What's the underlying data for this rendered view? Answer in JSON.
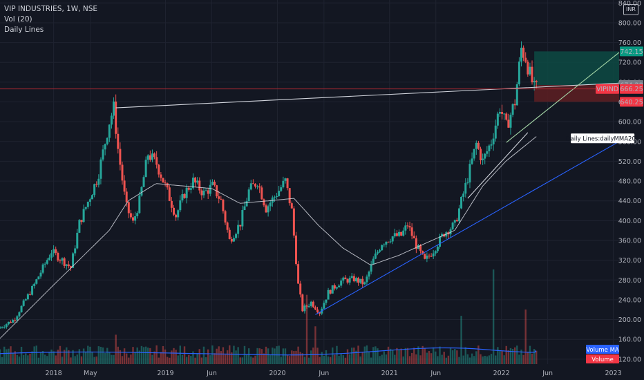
{
  "header": {
    "symbol_line": "VIP INDUSTRIES, 1W, NSE",
    "indicator_1": "Vol (20)",
    "indicator_2": "Daily Lines"
  },
  "currency_badge": "INR",
  "colors": {
    "background": "#131722",
    "up": "#26a69a",
    "down": "#ef5350",
    "grid": "#1f2330",
    "sma": "#d1d4dc",
    "trend_blue": "#2962ff",
    "volume_ma": "#2962ff",
    "target_zone": "#0d4a43",
    "stop_zone": "#5a1e22"
  },
  "chart_data": {
    "type": "candlestick",
    "title": "VIP INDUSTRIES, 1W, NSE",
    "y_axis": {
      "ticks": [
        120,
        160,
        200,
        240,
        280,
        320,
        360,
        400,
        440,
        480,
        520,
        560,
        600,
        640,
        680,
        720,
        760,
        800,
        840
      ],
      "tick_labels": [
        "120.00",
        "160.00",
        "200.00",
        "240.00",
        "280.00",
        "320.00",
        "360.00",
        "400.00",
        "440.00",
        "480.00",
        "520.00",
        "560.00",
        "600.00",
        "640.00",
        "680.00",
        "720.00",
        "760.00",
        "800.00",
        "840.00"
      ],
      "range": [
        110,
        846
      ]
    },
    "x_axis": {
      "labels": [
        "2018",
        "May",
        "2019",
        "Jun",
        "2020",
        "Jun",
        "2021",
        "Jun",
        "2022",
        "Jun",
        "2023"
      ],
      "label_dates": [
        "2018-01-01",
        "2018-05-01",
        "2019-01-01",
        "2019-06-01",
        "2020-01-01",
        "2020-06-01",
        "2021-01-01",
        "2021-06-01",
        "2022-01-01",
        "2022-06-01",
        "2023-01-01"
      ],
      "range": [
        "2017-07-10",
        "2023-01-20"
      ]
    },
    "price_anchors": [
      {
        "date": "2017-07-10",
        "price": 182
      },
      {
        "date": "2017-09-01",
        "price": 200
      },
      {
        "date": "2017-11-01",
        "price": 265
      },
      {
        "date": "2018-01-01",
        "price": 338
      },
      {
        "date": "2018-02-05",
        "price": 320
      },
      {
        "date": "2018-03-05",
        "price": 305
      },
      {
        "date": "2018-04-02",
        "price": 395
      },
      {
        "date": "2018-05-01",
        "price": 440
      },
      {
        "date": "2018-06-01",
        "price": 488
      },
      {
        "date": "2018-07-09",
        "price": 600
      },
      {
        "date": "2018-07-23",
        "price": 628
      },
      {
        "date": "2018-08-06",
        "price": 545
      },
      {
        "date": "2018-09-01",
        "price": 430
      },
      {
        "date": "2018-09-24",
        "price": 395
      },
      {
        "date": "2018-10-15",
        "price": 440
      },
      {
        "date": "2018-11-12",
        "price": 535
      },
      {
        "date": "2018-12-10",
        "price": 515
      },
      {
        "date": "2019-01-07",
        "price": 470
      },
      {
        "date": "2019-02-11",
        "price": 410
      },
      {
        "date": "2019-03-11",
        "price": 455
      },
      {
        "date": "2019-04-08",
        "price": 480
      },
      {
        "date": "2019-05-13",
        "price": 455
      },
      {
        "date": "2019-06-10",
        "price": 470
      },
      {
        "date": "2019-07-08",
        "price": 440
      },
      {
        "date": "2019-08-05",
        "price": 360
      },
      {
        "date": "2019-09-09",
        "price": 395
      },
      {
        "date": "2019-10-07",
        "price": 460
      },
      {
        "date": "2019-11-04",
        "price": 480
      },
      {
        "date": "2019-12-02",
        "price": 425
      },
      {
        "date": "2020-01-06",
        "price": 455
      },
      {
        "date": "2020-02-03",
        "price": 480
      },
      {
        "date": "2020-02-24",
        "price": 420
      },
      {
        "date": "2020-03-16",
        "price": 270
      },
      {
        "date": "2020-03-30",
        "price": 220
      },
      {
        "date": "2020-04-27",
        "price": 235
      },
      {
        "date": "2020-05-25",
        "price": 215
      },
      {
        "date": "2020-06-22",
        "price": 255
      },
      {
        "date": "2020-08-03",
        "price": 278
      },
      {
        "date": "2020-09-14",
        "price": 282
      },
      {
        "date": "2020-10-19",
        "price": 272
      },
      {
        "date": "2020-11-16",
        "price": 320
      },
      {
        "date": "2020-12-14",
        "price": 355
      },
      {
        "date": "2021-01-18",
        "price": 368
      },
      {
        "date": "2021-02-15",
        "price": 370
      },
      {
        "date": "2021-03-08",
        "price": 392
      },
      {
        "date": "2021-04-05",
        "price": 350
      },
      {
        "date": "2021-05-03",
        "price": 318
      },
      {
        "date": "2021-05-31",
        "price": 340
      },
      {
        "date": "2021-07-05",
        "price": 375
      },
      {
        "date": "2021-08-09",
        "price": 392
      },
      {
        "date": "2021-09-13",
        "price": 470
      },
      {
        "date": "2021-10-18",
        "price": 555
      },
      {
        "date": "2021-11-08",
        "price": 520
      },
      {
        "date": "2021-12-06",
        "price": 560
      },
      {
        "date": "2022-01-03",
        "price": 630
      },
      {
        "date": "2022-01-24",
        "price": 590
      },
      {
        "date": "2022-02-21",
        "price": 640
      },
      {
        "date": "2022-03-14",
        "price": 748
      },
      {
        "date": "2022-03-28",
        "price": 730
      },
      {
        "date": "2022-04-11",
        "price": 695
      },
      {
        "date": "2022-04-25",
        "price": 666
      }
    ],
    "sma_anchors": [
      {
        "date": "2017-07-10",
        "price": 162
      },
      {
        "date": "2018-01-01",
        "price": 270
      },
      {
        "date": "2018-07-01",
        "price": 380
      },
      {
        "date": "2018-09-01",
        "price": 440
      },
      {
        "date": "2018-12-01",
        "price": 475
      },
      {
        "date": "2019-06-01",
        "price": 465
      },
      {
        "date": "2019-09-01",
        "price": 435
      },
      {
        "date": "2019-12-01",
        "price": 440
      },
      {
        "date": "2020-02-24",
        "price": 445
      },
      {
        "date": "2020-05-15",
        "price": 390
      },
      {
        "date": "2020-08-01",
        "price": 345
      },
      {
        "date": "2020-11-01",
        "price": 310
      },
      {
        "date": "2021-02-01",
        "price": 330
      },
      {
        "date": "2021-05-01",
        "price": 355
      },
      {
        "date": "2021-08-01",
        "price": 380
      },
      {
        "date": "2021-11-01",
        "price": 470
      },
      {
        "date": "2022-01-15",
        "price": 520
      },
      {
        "date": "2022-04-25",
        "price": 570
      }
    ],
    "volume": {
      "axis_max": 300,
      "ma_level": 35,
      "spikes": [
        {
          "date": "2018-07-23",
          "value": 70
        },
        {
          "date": "2020-04-06",
          "value": 165
        },
        {
          "date": "2020-05-04",
          "value": 90
        },
        {
          "date": "2021-08-23",
          "value": 115
        },
        {
          "date": "2021-12-06",
          "value": 255
        },
        {
          "date": "2022-03-21",
          "value": 130
        }
      ]
    },
    "trendlines": [
      {
        "name": "resistance",
        "color": "white",
        "from": {
          "date": "2018-07-23",
          "price": 628
        },
        "to": {
          "date": "2023-01-20",
          "price": 678
        }
      },
      {
        "name": "support-blue",
        "color": "blue",
        "from": {
          "date": "2020-05-04",
          "price": 210
        },
        "to": {
          "date": "2023-01-20",
          "price": 560
        }
      },
      {
        "name": "channel-support",
        "color": "white",
        "from": {
          "date": "2021-09-13",
          "price": 445
        },
        "to": {
          "date": "2022-03-28",
          "price": 578
        }
      },
      {
        "name": "target-projection",
        "color": "green",
        "from": {
          "date": "2022-01-17",
          "price": 558
        },
        "to": {
          "date": "2023-01-20",
          "price": 740
        }
      }
    ],
    "zones": {
      "target": {
        "from_date": "2022-04-18",
        "to_date": "2023-01-20",
        "low": 674.2,
        "high": 742.15
      },
      "stop": {
        "from_date": "2022-04-18",
        "to_date": "2023-01-20",
        "low": 640.25,
        "high": 674.2
      }
    },
    "horizontal_line": {
      "price": 666.25,
      "color": "red"
    },
    "price_labels": [
      {
        "text": "742.15",
        "price": 742.15,
        "color": "#089981"
      },
      {
        "text": "674.20",
        "price": 674.2,
        "color": "#787b86"
      },
      {
        "text": "666.25",
        "price": 666.25,
        "color": "#f23645",
        "ticker": "VIPIND"
      },
      {
        "text": "640.25",
        "price": 640.25,
        "color": "#f23645"
      }
    ],
    "annotation": {
      "text": "Daily Lines:dailyMMA200",
      "date": "2022-08-20",
      "price": 565
    },
    "volume_labels": [
      {
        "text": "Volume MA",
        "color": "#2962ff"
      },
      {
        "text": "Volume",
        "color": "#f23645"
      }
    ]
  }
}
